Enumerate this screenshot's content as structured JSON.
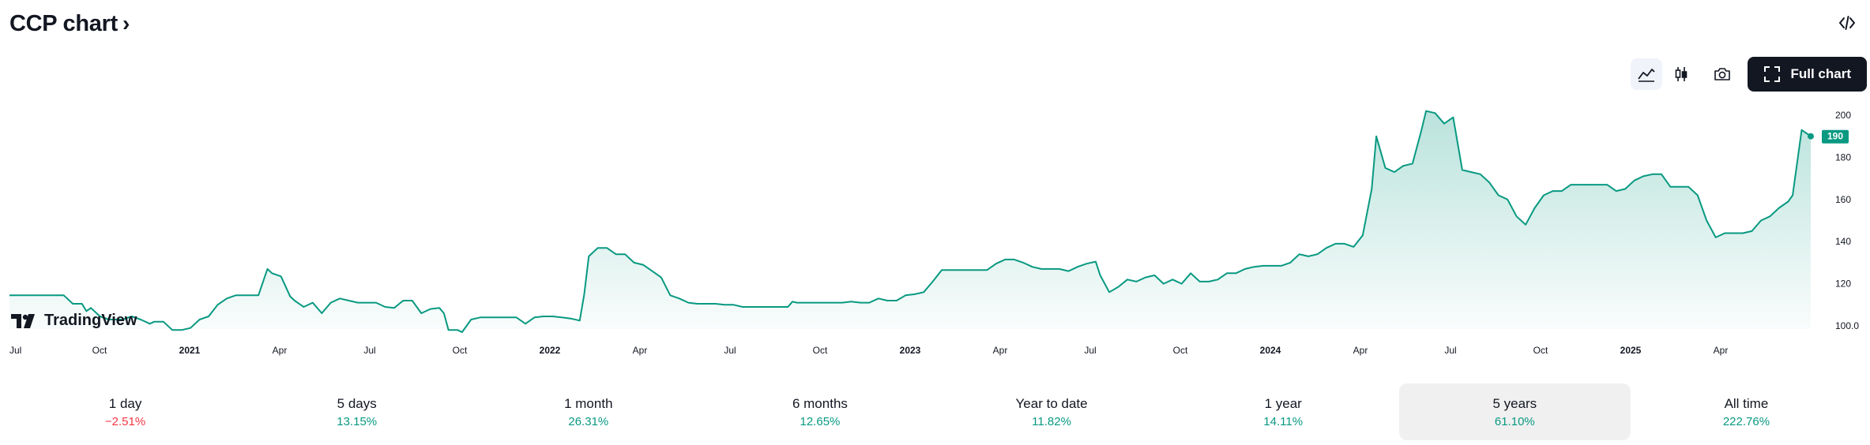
{
  "header": {
    "title": "CCP chart",
    "chevron": "›"
  },
  "toolbar": {
    "full_chart_label": "Full chart",
    "icons": [
      "area-chart-icon",
      "candles-icon",
      "camera-icon",
      "fullscreen-icon",
      "embed-icon"
    ]
  },
  "logo": {
    "text": "TradingView"
  },
  "colors": {
    "line": "#089981",
    "fill_top": "rgba(8,153,129,0.28)",
    "fill_bottom": "rgba(8,153,129,0.02)",
    "positive": "#089981",
    "negative": "#f23645",
    "badge": "#089981"
  },
  "chart_data": {
    "type": "area",
    "y_ticks": [
      "200",
      "180",
      "160",
      "140",
      "120",
      "100.0"
    ],
    "ylim": [
      98,
      212
    ],
    "x_ticks": [
      {
        "label": "Jul",
        "bold": false
      },
      {
        "label": "Oct",
        "bold": false
      },
      {
        "label": "2021",
        "bold": true
      },
      {
        "label": "Apr",
        "bold": false
      },
      {
        "label": "Jul",
        "bold": false
      },
      {
        "label": "Oct",
        "bold": false
      },
      {
        "label": "2022",
        "bold": true
      },
      {
        "label": "Apr",
        "bold": false
      },
      {
        "label": "Jul",
        "bold": false
      },
      {
        "label": "Oct",
        "bold": false
      },
      {
        "label": "2023",
        "bold": true
      },
      {
        "label": "Apr",
        "bold": false
      },
      {
        "label": "Jul",
        "bold": false
      },
      {
        "label": "Oct",
        "bold": false
      },
      {
        "label": "2024",
        "bold": true
      },
      {
        "label": "Apr",
        "bold": false
      },
      {
        "label": "Jul",
        "bold": false
      },
      {
        "label": "Oct",
        "bold": false
      },
      {
        "label": "2025",
        "bold": true
      },
      {
        "label": "Apr",
        "bold": false
      }
    ],
    "last_value_label": "190",
    "last_value": 190,
    "series": [
      [
        0,
        114.5
      ],
      [
        3,
        114.5
      ],
      [
        8,
        114.5
      ],
      [
        12,
        114.5
      ],
      [
        14,
        110.5
      ],
      [
        16,
        110.5
      ],
      [
        17,
        107
      ],
      [
        18,
        108.5
      ],
      [
        20,
        104.5
      ],
      [
        22,
        103
      ],
      [
        25,
        103
      ],
      [
        27,
        104.5
      ],
      [
        29,
        103
      ],
      [
        31,
        101
      ],
      [
        32,
        102
      ],
      [
        34,
        102
      ],
      [
        36,
        98
      ],
      [
        38,
        98
      ],
      [
        40,
        99
      ],
      [
        42,
        103
      ],
      [
        44,
        104.5
      ],
      [
        46,
        110
      ],
      [
        48,
        113
      ],
      [
        50,
        114.5
      ],
      [
        52,
        114.5
      ],
      [
        55,
        114.5
      ],
      [
        57,
        127
      ],
      [
        58,
        125
      ],
      [
        60,
        123.5
      ],
      [
        62,
        114
      ],
      [
        63,
        112
      ],
      [
        65,
        109
      ],
      [
        67,
        111
      ],
      [
        69,
        106
      ],
      [
        71,
        111
      ],
      [
        73,
        113
      ],
      [
        75,
        112
      ],
      [
        77,
        111
      ],
      [
        79,
        111
      ],
      [
        81,
        111
      ],
      [
        83,
        109
      ],
      [
        85,
        108.5
      ],
      [
        87,
        112
      ],
      [
        89,
        112
      ],
      [
        91,
        106
      ],
      [
        93,
        108
      ],
      [
        95,
        108.5
      ],
      [
        96,
        106
      ],
      [
        97,
        98
      ],
      [
        99,
        98
      ],
      [
        100,
        97
      ],
      [
        102,
        103
      ],
      [
        104,
        104
      ],
      [
        106,
        104
      ],
      [
        108,
        104
      ],
      [
        110,
        104
      ],
      [
        112,
        104
      ],
      [
        114,
        101
      ],
      [
        116,
        104
      ],
      [
        118,
        104.5
      ],
      [
        120,
        104.5
      ],
      [
        122,
        104
      ],
      [
        124,
        103.5
      ],
      [
        126,
        102.5
      ],
      [
        127,
        115
      ],
      [
        128,
        133
      ],
      [
        130,
        137
      ],
      [
        132,
        137
      ],
      [
        134,
        134
      ],
      [
        136,
        134
      ],
      [
        138,
        130
      ],
      [
        140,
        129
      ],
      [
        142,
        126
      ],
      [
        144,
        123
      ],
      [
        146,
        114.5
      ],
      [
        148,
        113
      ],
      [
        150,
        111
      ],
      [
        152,
        110.5
      ],
      [
        154,
        110.5
      ],
      [
        156,
        110.5
      ],
      [
        158,
        110
      ],
      [
        160,
        110
      ],
      [
        162,
        109
      ],
      [
        164,
        109
      ],
      [
        166,
        109
      ],
      [
        168,
        109
      ],
      [
        170,
        109
      ],
      [
        172,
        109
      ],
      [
        173,
        111.5
      ],
      [
        174,
        111
      ],
      [
        176,
        111
      ],
      [
        178,
        111
      ],
      [
        180,
        111
      ],
      [
        182,
        111
      ],
      [
        184,
        111
      ],
      [
        186,
        111.5
      ],
      [
        188,
        111
      ],
      [
        190,
        111
      ],
      [
        192,
        113
      ],
      [
        194,
        112
      ],
      [
        196,
        112
      ],
      [
        198,
        114.5
      ],
      [
        200,
        115
      ],
      [
        202,
        116
      ],
      [
        204,
        121
      ],
      [
        206,
        126.5
      ],
      [
        208,
        126.5
      ],
      [
        210,
        126.5
      ],
      [
        212,
        126.5
      ],
      [
        214,
        126.5
      ],
      [
        216,
        126.5
      ],
      [
        218,
        129.5
      ],
      [
        220,
        131.5
      ],
      [
        222,
        131.5
      ],
      [
        224,
        130
      ],
      [
        226,
        128
      ],
      [
        228,
        127
      ],
      [
        230,
        127
      ],
      [
        232,
        127
      ],
      [
        234,
        126
      ],
      [
        236,
        128
      ],
      [
        238,
        129.5
      ],
      [
        240,
        130.5
      ],
      [
        241,
        124
      ],
      [
        243,
        116
      ],
      [
        245,
        118.5
      ],
      [
        247,
        122
      ],
      [
        249,
        121
      ],
      [
        251,
        123
      ],
      [
        253,
        124
      ],
      [
        255,
        120
      ],
      [
        257,
        122
      ],
      [
        259,
        120
      ],
      [
        261,
        125
      ],
      [
        263,
        121
      ],
      [
        265,
        121
      ],
      [
        267,
        122
      ],
      [
        269,
        125
      ],
      [
        271,
        125
      ],
      [
        273,
        127
      ],
      [
        275,
        128
      ],
      [
        277,
        128.5
      ],
      [
        279,
        128.5
      ],
      [
        281,
        128.5
      ],
      [
        283,
        130
      ],
      [
        285,
        134
      ],
      [
        287,
        133
      ],
      [
        289,
        134
      ],
      [
        291,
        137
      ],
      [
        293,
        139
      ],
      [
        295,
        139
      ],
      [
        297,
        137.5
      ],
      [
        299,
        143
      ],
      [
        301,
        165
      ],
      [
        302,
        190
      ],
      [
        304,
        175
      ],
      [
        306,
        173
      ],
      [
        308,
        176
      ],
      [
        310,
        177
      ],
      [
        312,
        193
      ],
      [
        313,
        202
      ],
      [
        315,
        201
      ],
      [
        317,
        196
      ],
      [
        319,
        199
      ],
      [
        321,
        174
      ],
      [
        323,
        173
      ],
      [
        325,
        172
      ],
      [
        327,
        168
      ],
      [
        329,
        162
      ],
      [
        331,
        160
      ],
      [
        333,
        152
      ],
      [
        335,
        148
      ],
      [
        337,
        156
      ],
      [
        339,
        162
      ],
      [
        341,
        164
      ],
      [
        343,
        164
      ],
      [
        345,
        167
      ],
      [
        347,
        167
      ],
      [
        349,
        167
      ],
      [
        351,
        167
      ],
      [
        353,
        167
      ],
      [
        355,
        164
      ],
      [
        357,
        165
      ],
      [
        359,
        169
      ],
      [
        361,
        171
      ],
      [
        363,
        172
      ],
      [
        365,
        172
      ],
      [
        367,
        166
      ],
      [
        369,
        166
      ],
      [
        371,
        166
      ],
      [
        373,
        162
      ],
      [
        375,
        150
      ],
      [
        377,
        142
      ],
      [
        379,
        144
      ],
      [
        381,
        144
      ],
      [
        383,
        144
      ],
      [
        385,
        145
      ],
      [
        387,
        150
      ],
      [
        389,
        152
      ],
      [
        391,
        156
      ],
      [
        393,
        159
      ],
      [
        394,
        162
      ],
      [
        396,
        193
      ],
      [
        398,
        190
      ]
    ]
  },
  "periods": [
    {
      "label": "1 day",
      "value": "−2.51%",
      "sign": "neg",
      "active": false
    },
    {
      "label": "5 days",
      "value": "13.15%",
      "sign": "pos",
      "active": false
    },
    {
      "label": "1 month",
      "value": "26.31%",
      "sign": "pos",
      "active": false
    },
    {
      "label": "6 months",
      "value": "12.65%",
      "sign": "pos",
      "active": false
    },
    {
      "label": "Year to date",
      "value": "11.82%",
      "sign": "pos",
      "active": false
    },
    {
      "label": "1 year",
      "value": "14.11%",
      "sign": "pos",
      "active": false
    },
    {
      "label": "5 years",
      "value": "61.10%",
      "sign": "pos",
      "active": true
    },
    {
      "label": "All time",
      "value": "222.76%",
      "sign": "pos",
      "active": false
    }
  ]
}
